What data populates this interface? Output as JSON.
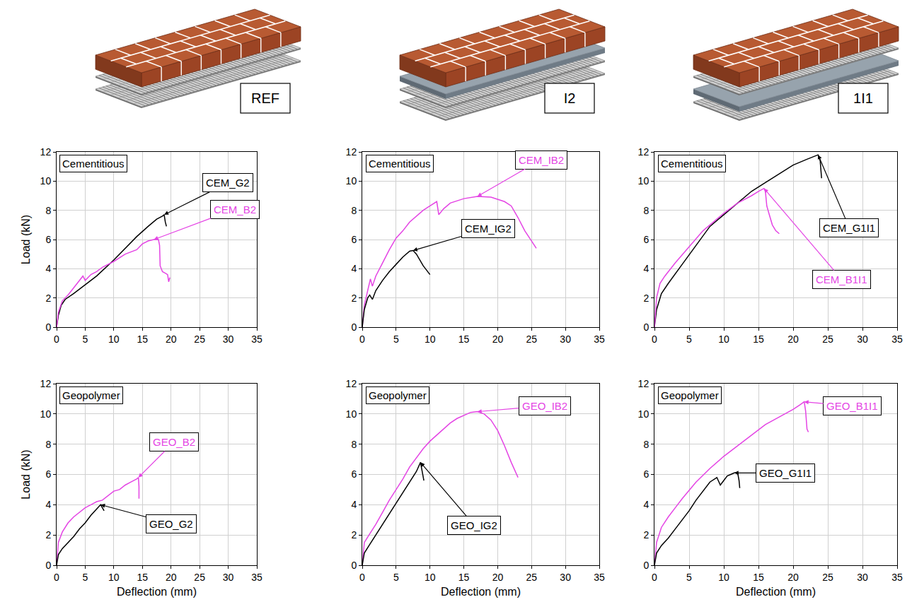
{
  "headers": [
    "REF",
    "I2",
    "1I1"
  ],
  "chart_data": [
    {
      "type": "line",
      "annotation": "Cementitious",
      "y_label": "Load (kN)",
      "xlim": [
        0,
        35
      ],
      "xticks": [
        0,
        5,
        10,
        15,
        20,
        25,
        30,
        35
      ],
      "ylim": [
        0,
        12
      ],
      "yticks": [
        0,
        2,
        4,
        6,
        8,
        10,
        12
      ],
      "grid": true,
      "series": [
        {
          "name": "CEM_G2",
          "color": "#000000",
          "x": [
            0,
            0.3,
            0.8,
            1.5,
            3,
            5,
            7,
            10,
            12,
            14,
            16,
            17.5,
            18.5,
            18.8,
            19,
            19.2
          ],
          "values": [
            0,
            0.8,
            1.5,
            1.9,
            2.3,
            2.9,
            3.5,
            4.6,
            5.4,
            6.2,
            6.9,
            7.4,
            7.6,
            7.7,
            7.2,
            6.9
          ]
        },
        {
          "name": "CEM_B2",
          "color": "#e444e4",
          "x": [
            0,
            0.3,
            1,
            2,
            3,
            4,
            4.6,
            5,
            5.5,
            6,
            7,
            8,
            10,
            12,
            14,
            15,
            16,
            17,
            17.8,
            18,
            18.1,
            18.5,
            19,
            19.4,
            19.6,
            19.8
          ],
          "values": [
            0,
            1.0,
            1.8,
            2.2,
            2.7,
            3.2,
            3.5,
            3.2,
            3.4,
            3.6,
            3.8,
            4.1,
            4.5,
            5.0,
            5.3,
            5.7,
            5.9,
            6.0,
            6.0,
            5.6,
            4.2,
            3.8,
            3.7,
            3.6,
            3.1,
            3.4
          ]
        }
      ]
    },
    {
      "type": "line",
      "annotation": "Cementitious",
      "xlim": [
        0,
        35
      ],
      "xticks": [
        0,
        5,
        10,
        15,
        20,
        25,
        30,
        35
      ],
      "ylim": [
        0,
        12
      ],
      "yticks": [
        0,
        2,
        4,
        6,
        8,
        10,
        12
      ],
      "grid": true,
      "series": [
        {
          "name": "CEM_IB2",
          "color": "#e444e4",
          "x": [
            0,
            0.3,
            0.8,
            1.2,
            1.5,
            2,
            3,
            4,
            5,
            6,
            7,
            8,
            9,
            10,
            11,
            11.3,
            12,
            13,
            15,
            17,
            19,
            21,
            22,
            23,
            24,
            25,
            25.7
          ],
          "values": [
            0,
            1.5,
            2.5,
            3.3,
            2.8,
            3.5,
            4.4,
            5.3,
            6.1,
            6.6,
            7.2,
            7.6,
            8.0,
            8.3,
            8.6,
            7.7,
            8.1,
            8.5,
            8.8,
            8.95,
            8.9,
            8.6,
            8.3,
            7.5,
            6.6,
            5.9,
            5.4
          ]
        },
        {
          "name": "CEM_IG2",
          "color": "#000000",
          "x": [
            0,
            0.3,
            0.8,
            1.1,
            1.5,
            2,
            3,
            4,
            5,
            6,
            7,
            7.5,
            8,
            8.5,
            9,
            9.5,
            10
          ],
          "values": [
            0,
            1.2,
            2.0,
            2.2,
            1.9,
            2.5,
            3.2,
            3.8,
            4.3,
            4.8,
            5.2,
            5.25,
            5.0,
            4.6,
            4.2,
            3.9,
            3.6
          ]
        }
      ]
    },
    {
      "type": "line",
      "annotation": "Cementitious",
      "xlim": [
        0,
        35
      ],
      "xticks": [
        0,
        5,
        10,
        15,
        20,
        25,
        30,
        35
      ],
      "ylim": [
        0,
        12
      ],
      "yticks": [
        0,
        2,
        4,
        6,
        8,
        10,
        12
      ],
      "grid": true,
      "series": [
        {
          "name": "CEM_G1I1",
          "color": "#000000",
          "x": [
            0,
            0.3,
            1,
            2,
            4,
            6,
            8,
            10,
            12,
            14,
            16,
            18,
            20,
            22,
            23,
            23.6,
            23.9,
            24,
            24.1
          ],
          "values": [
            0,
            1.2,
            2.3,
            3.0,
            4.3,
            5.6,
            6.9,
            7.7,
            8.5,
            9.3,
            9.9,
            10.5,
            11.1,
            11.5,
            11.7,
            11.8,
            11.4,
            10.7,
            10.2
          ]
        },
        {
          "name": "CEM_B1I1",
          "color": "#e444e4",
          "x": [
            0,
            0.3,
            0.8,
            1.5,
            3,
            5,
            7,
            8,
            10,
            12,
            14,
            15,
            15.8,
            16,
            16.2,
            16.5,
            17,
            17.5,
            18
          ],
          "values": [
            0,
            2.0,
            3.0,
            3.5,
            4.4,
            5.5,
            6.6,
            7.0,
            7.8,
            8.5,
            9.0,
            9.3,
            9.5,
            9.3,
            8.3,
            7.8,
            7.0,
            6.6,
            6.4
          ]
        }
      ]
    },
    {
      "type": "line",
      "annotation": "Geopolymer",
      "x_label": "Deflection (mm)",
      "y_label": "Load (kN)",
      "xlim": [
        0,
        35
      ],
      "xticks": [
        0,
        5,
        10,
        15,
        20,
        25,
        30,
        35
      ],
      "ylim": [
        0,
        12
      ],
      "yticks": [
        0,
        2,
        4,
        6,
        8,
        10,
        12
      ],
      "grid": true,
      "series": [
        {
          "name": "GEO_B2",
          "color": "#e444e4",
          "x": [
            0,
            0.3,
            1,
            2,
            3,
            4,
            5,
            6,
            7,
            8,
            9,
            10,
            11,
            12,
            13,
            14,
            14.3,
            14.4,
            14.4
          ],
          "values": [
            0,
            1.5,
            2.2,
            2.8,
            3.2,
            3.5,
            3.8,
            4.0,
            4.2,
            4.3,
            4.6,
            4.9,
            5.0,
            5.3,
            5.5,
            5.7,
            5.8,
            5.2,
            4.4
          ]
        },
        {
          "name": "GEO_G2",
          "color": "#000000",
          "x": [
            0,
            0.3,
            1,
            2,
            3,
            4,
            5,
            6,
            7,
            7.7,
            8,
            8.3
          ],
          "values": [
            0,
            0.7,
            1.1,
            1.5,
            1.9,
            2.4,
            2.8,
            3.3,
            3.7,
            4.0,
            3.8,
            3.6
          ]
        }
      ]
    },
    {
      "type": "line",
      "annotation": "Geopolymer",
      "x_label": "Deflection (mm)",
      "xlim": [
        0,
        35
      ],
      "xticks": [
        0,
        5,
        10,
        15,
        20,
        25,
        30,
        35
      ],
      "ylim": [
        0,
        12
      ],
      "yticks": [
        0,
        2,
        4,
        6,
        8,
        10,
        12
      ],
      "grid": true,
      "series": [
        {
          "name": "GEO_IB2",
          "color": "#e444e4",
          "x": [
            0,
            0.3,
            1,
            2,
            3,
            4,
            5,
            6,
            7,
            8,
            9,
            10,
            11,
            12,
            13,
            14,
            15,
            16,
            17,
            18,
            19,
            20,
            21,
            22,
            23
          ],
          "values": [
            0,
            1.5,
            2.0,
            2.7,
            3.5,
            4.3,
            5.0,
            5.7,
            6.5,
            7.1,
            7.7,
            8.2,
            8.6,
            9.0,
            9.4,
            9.7,
            9.9,
            10.1,
            10.15,
            10.0,
            9.6,
            8.9,
            7.9,
            6.8,
            5.8
          ]
        },
        {
          "name": "GEO_IG2",
          "color": "#000000",
          "x": [
            0,
            0.3,
            1,
            2,
            3,
            4,
            5,
            6,
            7,
            8,
            8.6,
            8.9,
            9.1
          ],
          "values": [
            0,
            0.8,
            1.3,
            2.0,
            2.7,
            3.4,
            4.1,
            4.8,
            5.5,
            6.2,
            6.8,
            6.0,
            5.6
          ]
        }
      ]
    },
    {
      "type": "line",
      "annotation": "Geopolymer",
      "x_label": "Deflection (mm)",
      "xlim": [
        0,
        35
      ],
      "xticks": [
        0,
        5,
        10,
        15,
        20,
        25,
        30,
        35
      ],
      "ylim": [
        0,
        12
      ],
      "yticks": [
        0,
        2,
        4,
        6,
        8,
        10,
        12
      ],
      "grid": true,
      "series": [
        {
          "name": "GEO_B1I1",
          "color": "#e444e4",
          "x": [
            0,
            0.3,
            1,
            2,
            3,
            4,
            6,
            8,
            10,
            12,
            14,
            16,
            18,
            20,
            21,
            21.6,
            21.8,
            22,
            22.2
          ],
          "values": [
            0,
            1.5,
            2.5,
            3.2,
            3.8,
            4.4,
            5.5,
            6.4,
            7.2,
            7.9,
            8.6,
            9.3,
            9.8,
            10.3,
            10.6,
            10.8,
            10.2,
            9.0,
            8.8
          ]
        },
        {
          "name": "GEO_G1I1",
          "color": "#000000",
          "x": [
            0,
            0.3,
            1,
            2,
            3,
            4,
            5,
            6,
            7,
            7.5,
            8,
            9,
            9.5,
            10,
            10.5,
            11,
            11.5,
            12,
            12.2,
            12.3
          ],
          "values": [
            0,
            0.8,
            1.3,
            1.8,
            2.4,
            3.0,
            3.6,
            4.3,
            4.9,
            5.2,
            5.5,
            5.8,
            5.3,
            5.6,
            5.9,
            6.0,
            6.1,
            6.1,
            5.6,
            5.1
          ]
        }
      ]
    }
  ]
}
